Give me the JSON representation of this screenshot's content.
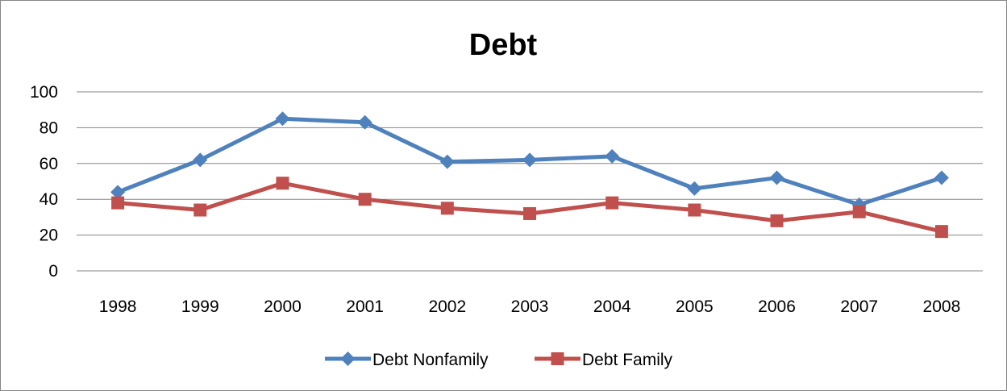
{
  "chart_data": {
    "type": "line",
    "title": "Debt",
    "xlabel": "",
    "ylabel": "",
    "categories": [
      "1998",
      "1999",
      "2000",
      "2001",
      "2002",
      "2003",
      "2004",
      "2005",
      "2006",
      "2007",
      "2008"
    ],
    "ylim": [
      0,
      100
    ],
    "yticks": [
      "0",
      "20",
      "40",
      "60",
      "80",
      "100"
    ],
    "grid": "horizontal",
    "legend_position": "bottom",
    "series": [
      {
        "name": "Debt Nonfamily",
        "color": "#4F81BD",
        "marker": "diamond",
        "values": [
          44,
          62,
          85,
          83,
          61,
          62,
          64,
          46,
          52,
          37,
          52
        ]
      },
      {
        "name": "Debt Family",
        "color": "#C0504D",
        "marker": "square",
        "values": [
          38,
          34,
          49,
          40,
          35,
          32,
          38,
          34,
          28,
          33,
          22
        ]
      }
    ]
  }
}
